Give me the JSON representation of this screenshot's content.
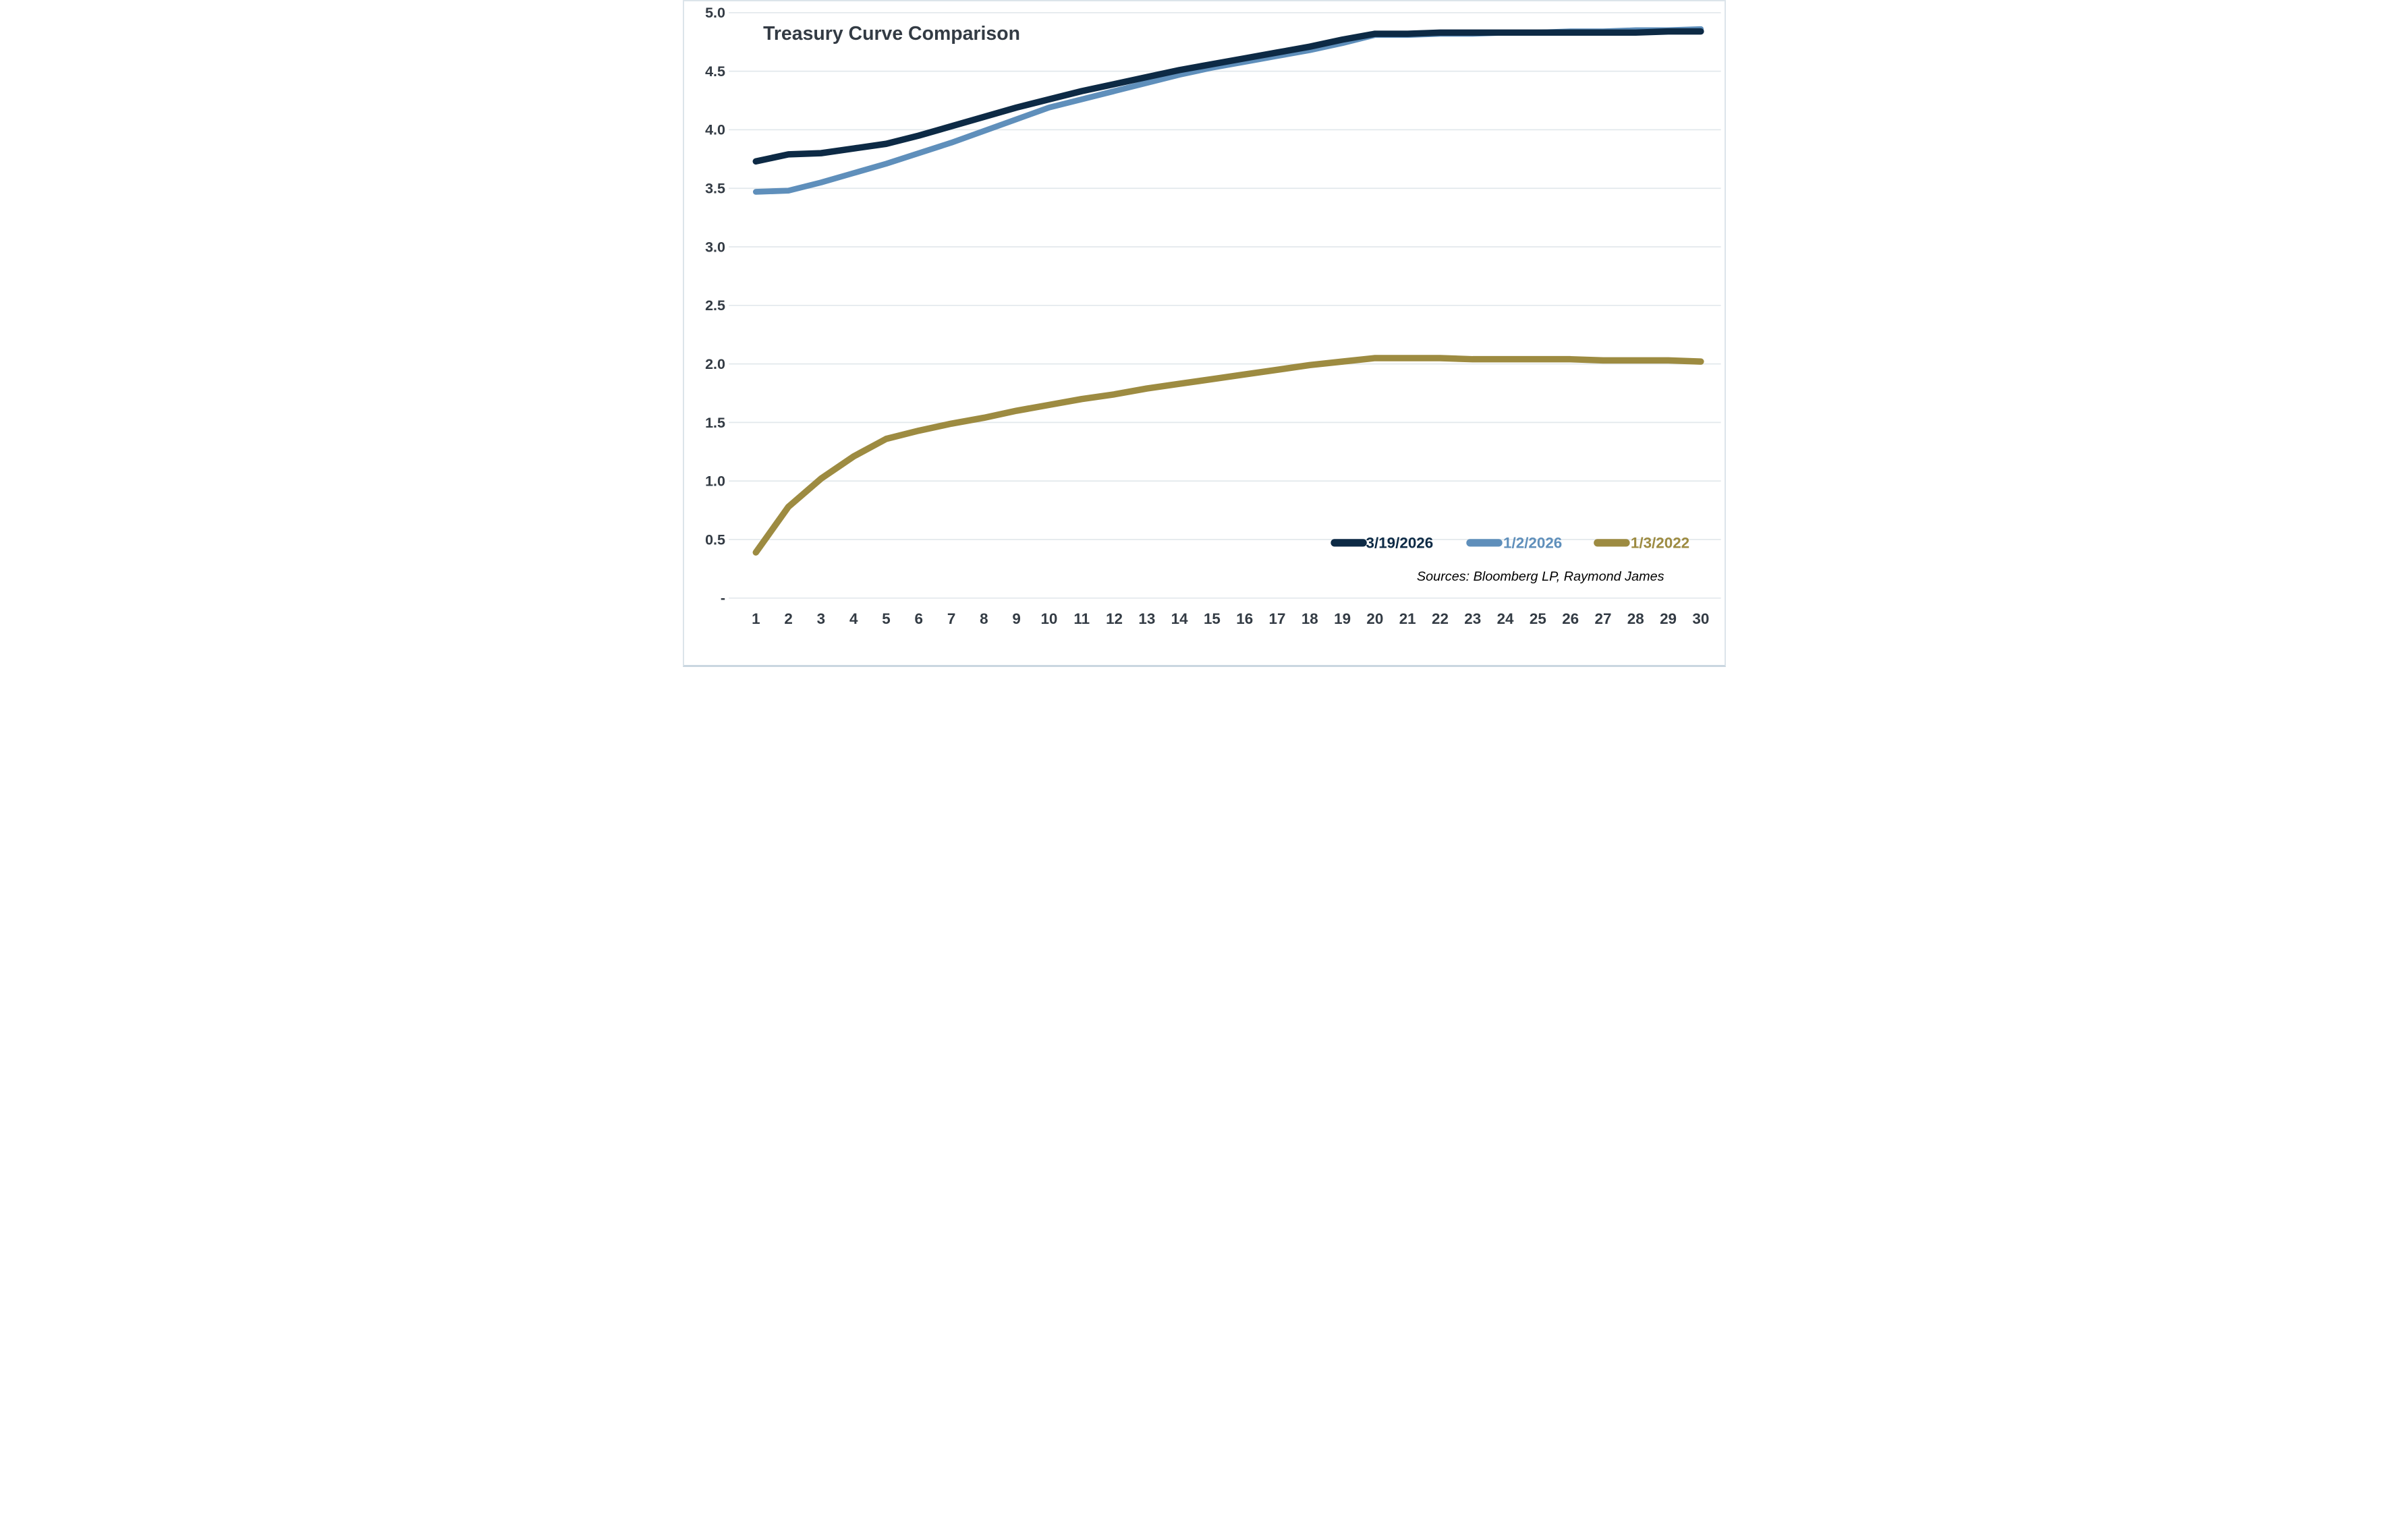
{
  "chart_data": {
    "type": "line",
    "title": "Treasury Curve Comparison",
    "xlabel": "",
    "ylabel": "",
    "x_categories": [
      "1",
      "2",
      "3",
      "4",
      "5",
      "6",
      "7",
      "8",
      "9",
      "10",
      "11",
      "12",
      "13",
      "14",
      "15",
      "16",
      "17",
      "18",
      "19",
      "20",
      "21",
      "22",
      "23",
      "24",
      "25",
      "26",
      "27",
      "28",
      "29",
      "30"
    ],
    "ylim": [
      0,
      5.0
    ],
    "y_ticks": [
      {
        "value": 5.0,
        "label": "5.0"
      },
      {
        "value": 4.5,
        "label": "4.5"
      },
      {
        "value": 4.0,
        "label": "4.0"
      },
      {
        "value": 3.5,
        "label": "3.5"
      },
      {
        "value": 3.0,
        "label": "3.0"
      },
      {
        "value": 2.5,
        "label": "2.5"
      },
      {
        "value": 2.0,
        "label": "2.0"
      },
      {
        "value": 1.5,
        "label": "1.5"
      },
      {
        "value": 1.0,
        "label": "1.0"
      },
      {
        "value": 0.5,
        "label": "0.5"
      },
      {
        "value": 0.0,
        "label": "-"
      }
    ],
    "grid": "horizontal",
    "legend_position": "inside-bottom-right",
    "series": [
      {
        "name": "3/19/2026",
        "color": "#0d2a45",
        "values": [
          3.73,
          3.79,
          3.8,
          3.84,
          3.88,
          3.95,
          4.03,
          4.11,
          4.19,
          4.26,
          4.33,
          4.39,
          4.45,
          4.51,
          4.56,
          4.61,
          4.66,
          4.71,
          4.77,
          4.82,
          4.82,
          4.83,
          4.83,
          4.83,
          4.83,
          4.83,
          4.83,
          4.83,
          4.84,
          4.84
        ]
      },
      {
        "name": "1/2/2026",
        "color": "#5f8fbb",
        "values": [
          3.47,
          3.48,
          3.55,
          3.63,
          3.71,
          3.8,
          3.89,
          3.99,
          4.09,
          4.19,
          4.26,
          4.33,
          4.4,
          4.47,
          4.53,
          4.58,
          4.63,
          4.68,
          4.74,
          4.81,
          4.81,
          4.82,
          4.82,
          4.83,
          4.83,
          4.84,
          4.84,
          4.85,
          4.85,
          4.86
        ]
      },
      {
        "name": "1/3/2022",
        "color": "#9d8b41",
        "values": [
          0.39,
          0.78,
          1.02,
          1.21,
          1.36,
          1.43,
          1.49,
          1.54,
          1.6,
          1.65,
          1.7,
          1.74,
          1.79,
          1.83,
          1.87,
          1.91,
          1.95,
          1.99,
          2.02,
          2.05,
          2.05,
          2.05,
          2.04,
          2.04,
          2.04,
          2.04,
          2.03,
          2.03,
          2.03,
          2.02
        ]
      }
    ],
    "source_note": "Sources: Bloomberg LP, Raymond James"
  },
  "styles": {
    "title_color": "#333b44",
    "axis_text_color": "#333b44",
    "gridline_color": "#e2e8ec",
    "source_color": "#000000",
    "background": "#ffffff"
  }
}
